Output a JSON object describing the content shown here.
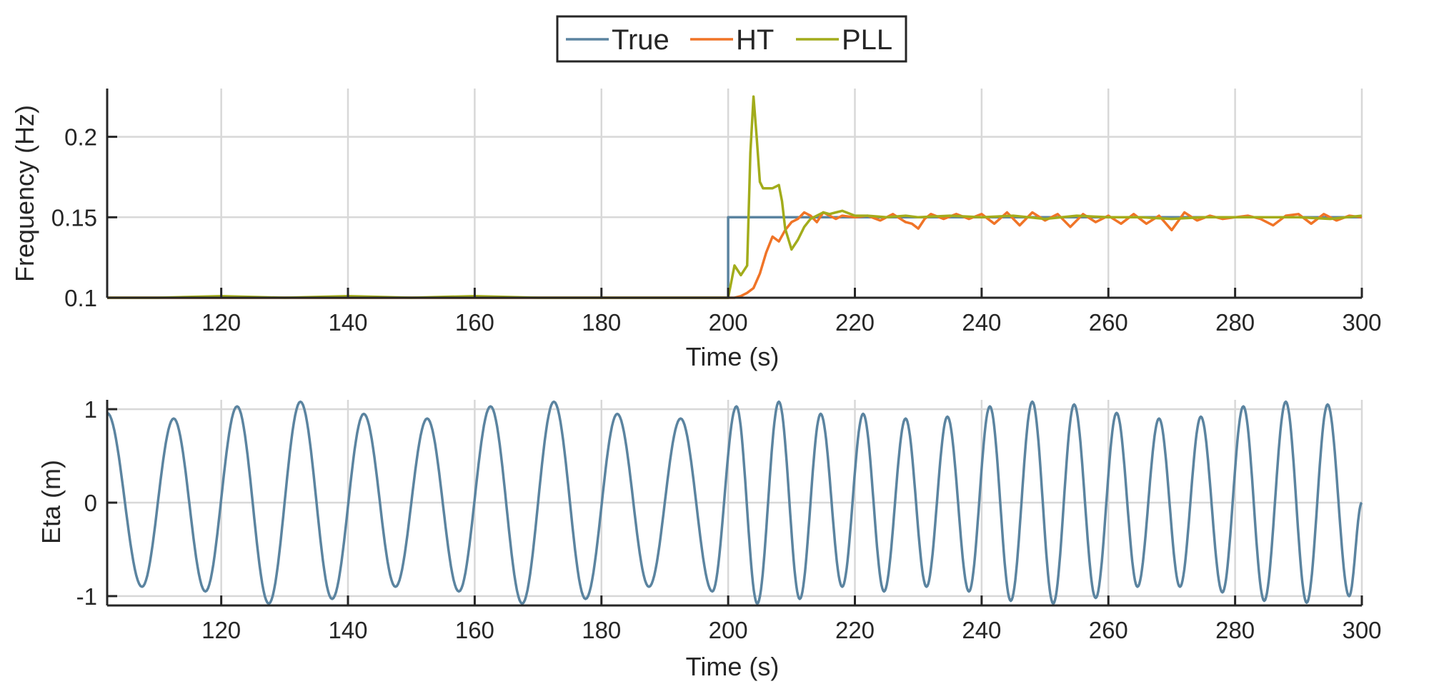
{
  "chart_data": [
    {
      "type": "line",
      "xlabel": "Time (s)",
      "ylabel": "Frequency (Hz)",
      "xlim": [
        102,
        300
      ],
      "ylim": [
        0.1,
        0.23
      ],
      "xticks": [
        120,
        140,
        160,
        180,
        200,
        220,
        240,
        260,
        280,
        300
      ],
      "xtick_labels": [
        "120",
        "140",
        "160",
        "180",
        "200",
        "220",
        "240",
        "260",
        "280",
        "300"
      ],
      "yticks": [
        0.1,
        0.15,
        0.2
      ],
      "ytick_labels": [
        "0.1",
        "0.15",
        "0.2"
      ],
      "grid": true,
      "legend": {
        "position": "top-center",
        "orientation": "horizontal",
        "entries": [
          "True",
          "HT",
          "PLL"
        ]
      },
      "series": [
        {
          "name": "True",
          "color": "#5b84a0",
          "x": [
            102,
            200,
            200,
            300
          ],
          "y": [
            0.1,
            0.1,
            0.15,
            0.15
          ]
        },
        {
          "name": "HT",
          "color": "#f07427",
          "x": [
            102,
            110,
            120,
            130,
            140,
            150,
            160,
            170,
            180,
            190,
            200,
            201,
            202,
            203,
            204,
            205,
            206,
            207,
            208,
            209,
            210,
            211,
            212,
            213,
            214,
            215,
            216,
            217,
            218,
            220,
            222,
            224,
            226,
            228,
            229,
            230,
            231,
            232,
            234,
            236,
            238,
            240,
            242,
            244,
            246,
            248,
            250,
            252,
            254,
            256,
            258,
            260,
            262,
            264,
            266,
            268,
            270,
            272,
            274,
            276,
            278,
            280,
            282,
            284,
            286,
            288,
            290,
            292,
            294,
            296,
            298,
            300
          ],
          "y": [
            0.1,
            0.1,
            0.1,
            0.1,
            0.1,
            0.1,
            0.1,
            0.1,
            0.1,
            0.1,
            0.1,
            0.1,
            0.101,
            0.103,
            0.106,
            0.115,
            0.128,
            0.138,
            0.135,
            0.142,
            0.147,
            0.149,
            0.153,
            0.151,
            0.147,
            0.153,
            0.151,
            0.149,
            0.151,
            0.15,
            0.151,
            0.148,
            0.152,
            0.147,
            0.146,
            0.143,
            0.149,
            0.152,
            0.149,
            0.152,
            0.149,
            0.152,
            0.146,
            0.153,
            0.145,
            0.153,
            0.148,
            0.152,
            0.144,
            0.152,
            0.147,
            0.151,
            0.146,
            0.152,
            0.146,
            0.151,
            0.142,
            0.153,
            0.148,
            0.151,
            0.149,
            0.15,
            0.151,
            0.149,
            0.145,
            0.151,
            0.152,
            0.146,
            0.152,
            0.148,
            0.151,
            0.15
          ]
        },
        {
          "name": "PLL",
          "color": "#a2ac1b",
          "x": [
            102,
            110,
            120,
            130,
            140,
            150,
            160,
            170,
            180,
            190,
            199,
            200,
            201,
            202,
            203,
            203.5,
            204,
            204.5,
            205,
            205.5,
            206,
            207,
            208,
            208.5,
            209,
            210,
            211,
            212,
            213,
            214,
            215,
            216,
            217,
            218,
            220,
            222,
            225,
            228,
            230,
            235,
            240,
            245,
            250,
            255,
            260,
            265,
            270,
            275,
            280,
            285,
            290,
            295,
            300
          ],
          "y": [
            0.1,
            0.1,
            0.101,
            0.1,
            0.101,
            0.1,
            0.101,
            0.1,
            0.1,
            0.1,
            0.1,
            0.1,
            0.12,
            0.114,
            0.12,
            0.19,
            0.225,
            0.2,
            0.172,
            0.168,
            0.168,
            0.168,
            0.17,
            0.16,
            0.143,
            0.13,
            0.136,
            0.144,
            0.149,
            0.151,
            0.153,
            0.152,
            0.153,
            0.154,
            0.151,
            0.151,
            0.15,
            0.151,
            0.15,
            0.151,
            0.15,
            0.151,
            0.149,
            0.151,
            0.15,
            0.15,
            0.149,
            0.15,
            0.15,
            0.15,
            0.15,
            0.149,
            0.151
          ]
        }
      ]
    },
    {
      "type": "line",
      "xlabel": "Time (s)",
      "ylabel": "Eta (m)",
      "xlim": [
        102,
        300
      ],
      "ylim": [
        -1.1,
        1.1
      ],
      "xticks": [
        120,
        140,
        160,
        180,
        200,
        220,
        240,
        260,
        280,
        300
      ],
      "xtick_labels": [
        "120",
        "140",
        "160",
        "180",
        "200",
        "220",
        "240",
        "260",
        "280",
        "300"
      ],
      "yticks": [
        -1,
        0,
        1
      ],
      "ytick_labels": [
        "-1",
        "0",
        "1"
      ],
      "grid": true,
      "series": [
        {
          "color": "#5b84a0",
          "description_of_waveform": "",
          "x": [
            102,
            107.5,
            112.5,
            117.5,
            122.5,
            127.5,
            132.5,
            137.5,
            142.5,
            147.5,
            152.5,
            157.5,
            162.5,
            167.5,
            172.5,
            177.5,
            182.5,
            187.5,
            192.5,
            197.5,
            201.3,
            204.6,
            208.0,
            211.3,
            214.6,
            218.0,
            221.3,
            224.6,
            228.0,
            231.3,
            234.6,
            238.0,
            241.3,
            244.6,
            248.0,
            251.3,
            254.6,
            258.0,
            261.3,
            264.6,
            268.0,
            271.3,
            274.6,
            278.0,
            281.3,
            284.6,
            288.0,
            291.3,
            294.6,
            298.0,
            300
          ],
          "y": [
            0.96,
            -0.9,
            0.9,
            -0.95,
            1.03,
            -1.08,
            1.08,
            -1.03,
            0.95,
            -0.9,
            0.9,
            -0.95,
            1.03,
            -1.08,
            1.08,
            -1.03,
            0.95,
            -0.9,
            0.9,
            -0.95,
            1.03,
            -1.08,
            1.08,
            -1.03,
            0.95,
            -0.9,
            0.95,
            -0.95,
            0.9,
            -0.9,
            0.92,
            -0.95,
            1.03,
            -1.05,
            1.08,
            -1.08,
            1.05,
            -1.02,
            0.96,
            -0.9,
            0.9,
            -0.9,
            0.92,
            -0.96,
            1.03,
            -1.05,
            1.08,
            -1.07,
            1.05,
            -1.0,
            0.0
          ]
        }
      ]
    }
  ]
}
